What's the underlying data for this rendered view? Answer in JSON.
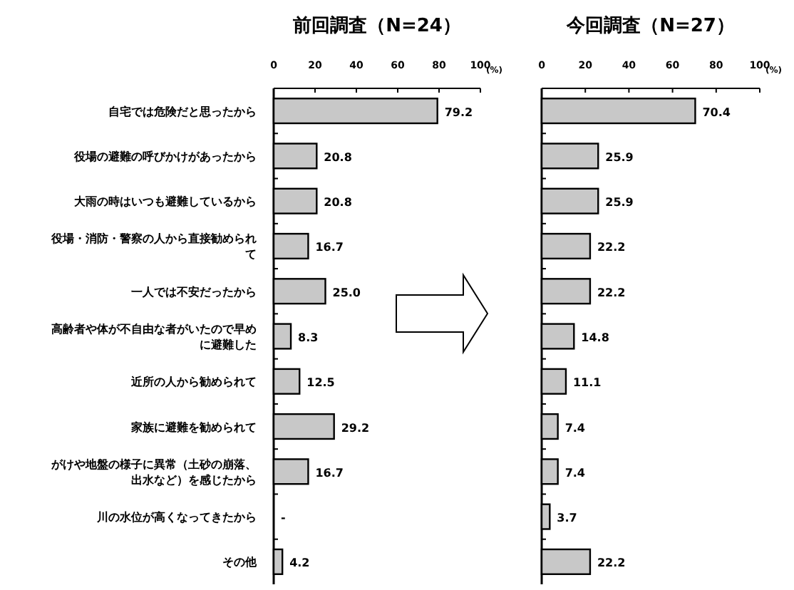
{
  "chart_data": [
    {
      "type": "bar",
      "orientation": "horizontal",
      "title": "前回調査（N=24）",
      "xlabel": "(%)",
      "categories": [
        "自宅では危険だと思ったから",
        "役場の避難の呼びかけがあったから",
        "大雨の時はいつも避難しているから",
        "役場・消防・警察の人から直接勧められて",
        "一人では不安だったから",
        "高齢者や体が不自由な者がいたので早めに避難した",
        "近所の人から勧められて",
        "家族に避難を勧められて",
        "がけや地盤の様子に異常（土砂の崩落、出水など）を感じたから",
        "川の水位が高くなってきたから",
        "その他"
      ],
      "values": [
        79.2,
        20.8,
        20.8,
        16.7,
        25.0,
        8.3,
        12.5,
        29.2,
        16.7,
        0,
        4.2
      ],
      "value_labels": [
        "79.2",
        "20.8",
        "20.8",
        "16.7",
        "25.0",
        "8.3",
        "12.5",
        "29.2",
        "16.7",
        "-",
        "4.2"
      ],
      "color": "#c8c8c8",
      "xlim": [
        0,
        100
      ],
      "xticks": [
        0,
        20,
        40,
        60,
        80,
        100
      ]
    },
    {
      "type": "bar",
      "orientation": "horizontal",
      "title": "今回調査（N=27）",
      "xlabel": "(%)",
      "categories": [
        null,
        null,
        null,
        null,
        null,
        null,
        null,
        null,
        null,
        null,
        null
      ],
      "values": [
        70.4,
        25.9,
        25.9,
        22.2,
        22.2,
        14.8,
        11.1,
        7.4,
        7.4,
        3.7,
        22.2
      ],
      "value_labels": [
        "70.4",
        "25.9",
        "25.9",
        "22.2",
        "22.2",
        "14.8",
        "11.1",
        "7.4",
        "7.4",
        "3.7",
        "22.2"
      ],
      "color": "#c8c8c8",
      "xlim": [
        0,
        100
      ],
      "xticks": [
        0,
        20,
        40,
        60,
        80,
        100
      ],
      "tick_labels": "x"
    }
  ]
}
